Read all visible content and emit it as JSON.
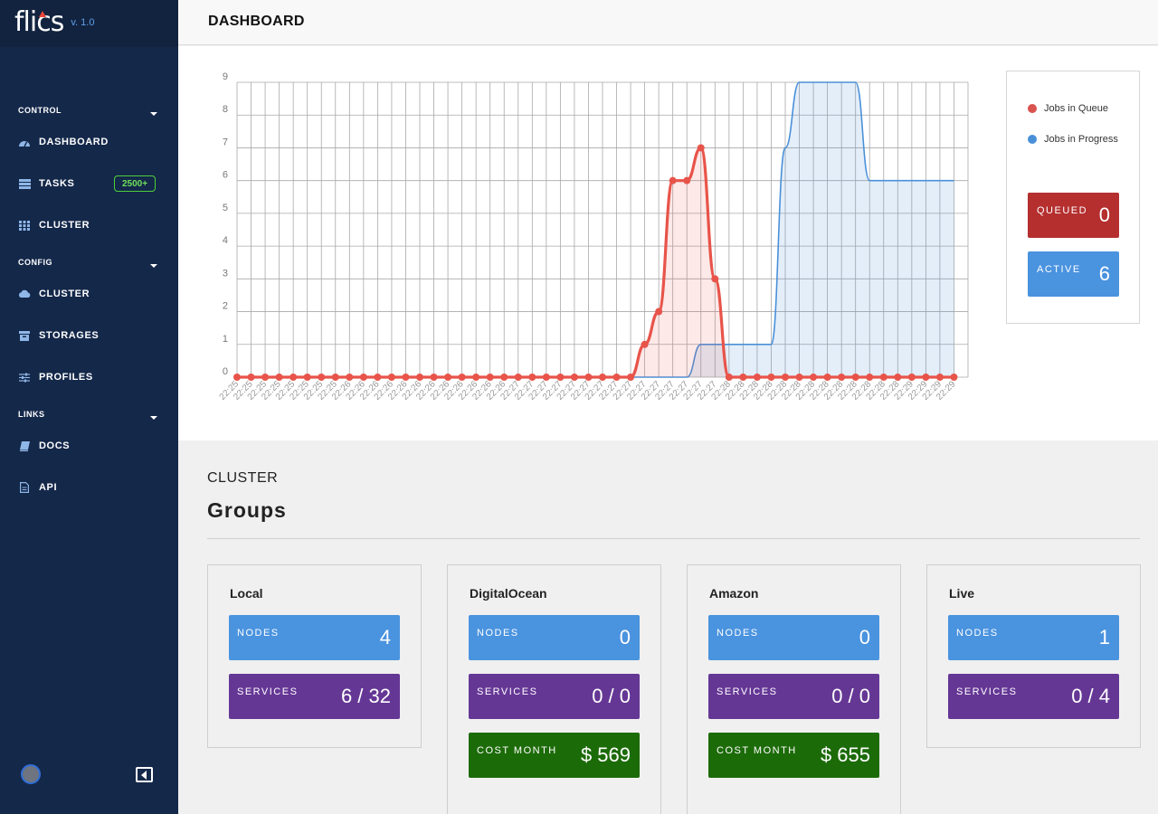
{
  "app": {
    "logo": "flics",
    "version": "v. 1.0"
  },
  "sidebar": {
    "sections": [
      {
        "label": "CONTROL"
      },
      {
        "label": "CONFIG"
      },
      {
        "label": "LINKS"
      }
    ],
    "items": [
      {
        "label": "DASHBOARD",
        "icon": "gauge-icon"
      },
      {
        "label": "TASKS",
        "icon": "tasks-icon",
        "badge": "2500+"
      },
      {
        "label": "CLUSTER",
        "icon": "grid-icon"
      },
      {
        "label": "CLUSTER",
        "icon": "cloud-icon"
      },
      {
        "label": "STORAGES",
        "icon": "storage-icon"
      },
      {
        "label": "PROFILES",
        "icon": "sliders-icon"
      },
      {
        "label": "DOCS",
        "icon": "book-icon"
      },
      {
        "label": "API",
        "icon": "file-icon"
      }
    ]
  },
  "header": {
    "title": "DASHBOARD"
  },
  "legend": {
    "queue_label": "Jobs in Queue",
    "progress_label": "Jobs in Progress",
    "queued_label": "QUEUED",
    "queued_value": "0",
    "active_label": "ACTIVE",
    "active_value": "6"
  },
  "chart_data": {
    "type": "line",
    "x": [
      "22:25",
      "22:25",
      "22:25",
      "22:25",
      "22:25",
      "22:25",
      "22:25",
      "22:25",
      "22:26",
      "22:26",
      "22:26",
      "22:26",
      "22:26",
      "22:26",
      "22:26",
      "22:26",
      "22:26",
      "22:26",
      "22:26",
      "22:26",
      "22:27",
      "22:27",
      "22:27",
      "22:27",
      "22:27",
      "22:27",
      "22:27",
      "22:27",
      "22:27",
      "22:27",
      "22:27",
      "22:27",
      "22:27",
      "22:27",
      "22:27",
      "22:28",
      "22:28",
      "22:28",
      "22:28",
      "22:28",
      "22:28",
      "22:28",
      "22:28",
      "22:28",
      "22:28",
      "22:28",
      "22:28",
      "22:28",
      "22:29",
      "22:29",
      "22:29",
      "22:29"
    ],
    "ylim": [
      0,
      9
    ],
    "yticks": [
      0,
      1,
      2,
      3,
      4,
      5,
      6,
      7,
      8,
      9
    ],
    "series": [
      {
        "name": "Jobs in Queue",
        "color": "#e8544a",
        "values": [
          0,
          0,
          0,
          0,
          0,
          0,
          0,
          0,
          0,
          0,
          0,
          0,
          0,
          0,
          0,
          0,
          0,
          0,
          0,
          0,
          0,
          0,
          0,
          0,
          0,
          0,
          0,
          0,
          0,
          1,
          2,
          6,
          6,
          7,
          3,
          0,
          0,
          0,
          0,
          0,
          0,
          0,
          0,
          0,
          0,
          0,
          0,
          0,
          0,
          0,
          0,
          0
        ]
      },
      {
        "name": "Jobs in Progress",
        "color": "#4a90d9",
        "values": [
          0,
          0,
          0,
          0,
          0,
          0,
          0,
          0,
          0,
          0,
          0,
          0,
          0,
          0,
          0,
          0,
          0,
          0,
          0,
          0,
          0,
          0,
          0,
          0,
          0,
          0,
          0,
          0,
          0,
          0,
          0,
          0,
          0,
          1,
          1,
          1,
          1,
          1,
          1,
          7,
          9,
          9,
          9,
          9,
          9,
          6,
          6,
          6,
          6,
          6,
          6,
          6
        ]
      }
    ],
    "grid": true
  },
  "cluster": {
    "heading": "CLUSTER",
    "subheading": "Groups",
    "groups": [
      {
        "name": "Local",
        "nodes_label": "NODES",
        "nodes": "4",
        "services_label": "SERVICES",
        "services": "6 / 32"
      },
      {
        "name": "DigitalOcean",
        "nodes_label": "NODES",
        "nodes": "0",
        "services_label": "SERVICES",
        "services": "0 / 0",
        "cost_label": "COST MONTH",
        "cost": "$ 569"
      },
      {
        "name": "Amazon",
        "nodes_label": "NODES",
        "nodes": "0",
        "services_label": "SERVICES",
        "services": "0 / 0",
        "cost_label": "COST MONTH",
        "cost": "$ 655"
      },
      {
        "name": "Live",
        "nodes_label": "NODES",
        "nodes": "1",
        "services_label": "SERVICES",
        "services": "0 / 4"
      }
    ]
  }
}
